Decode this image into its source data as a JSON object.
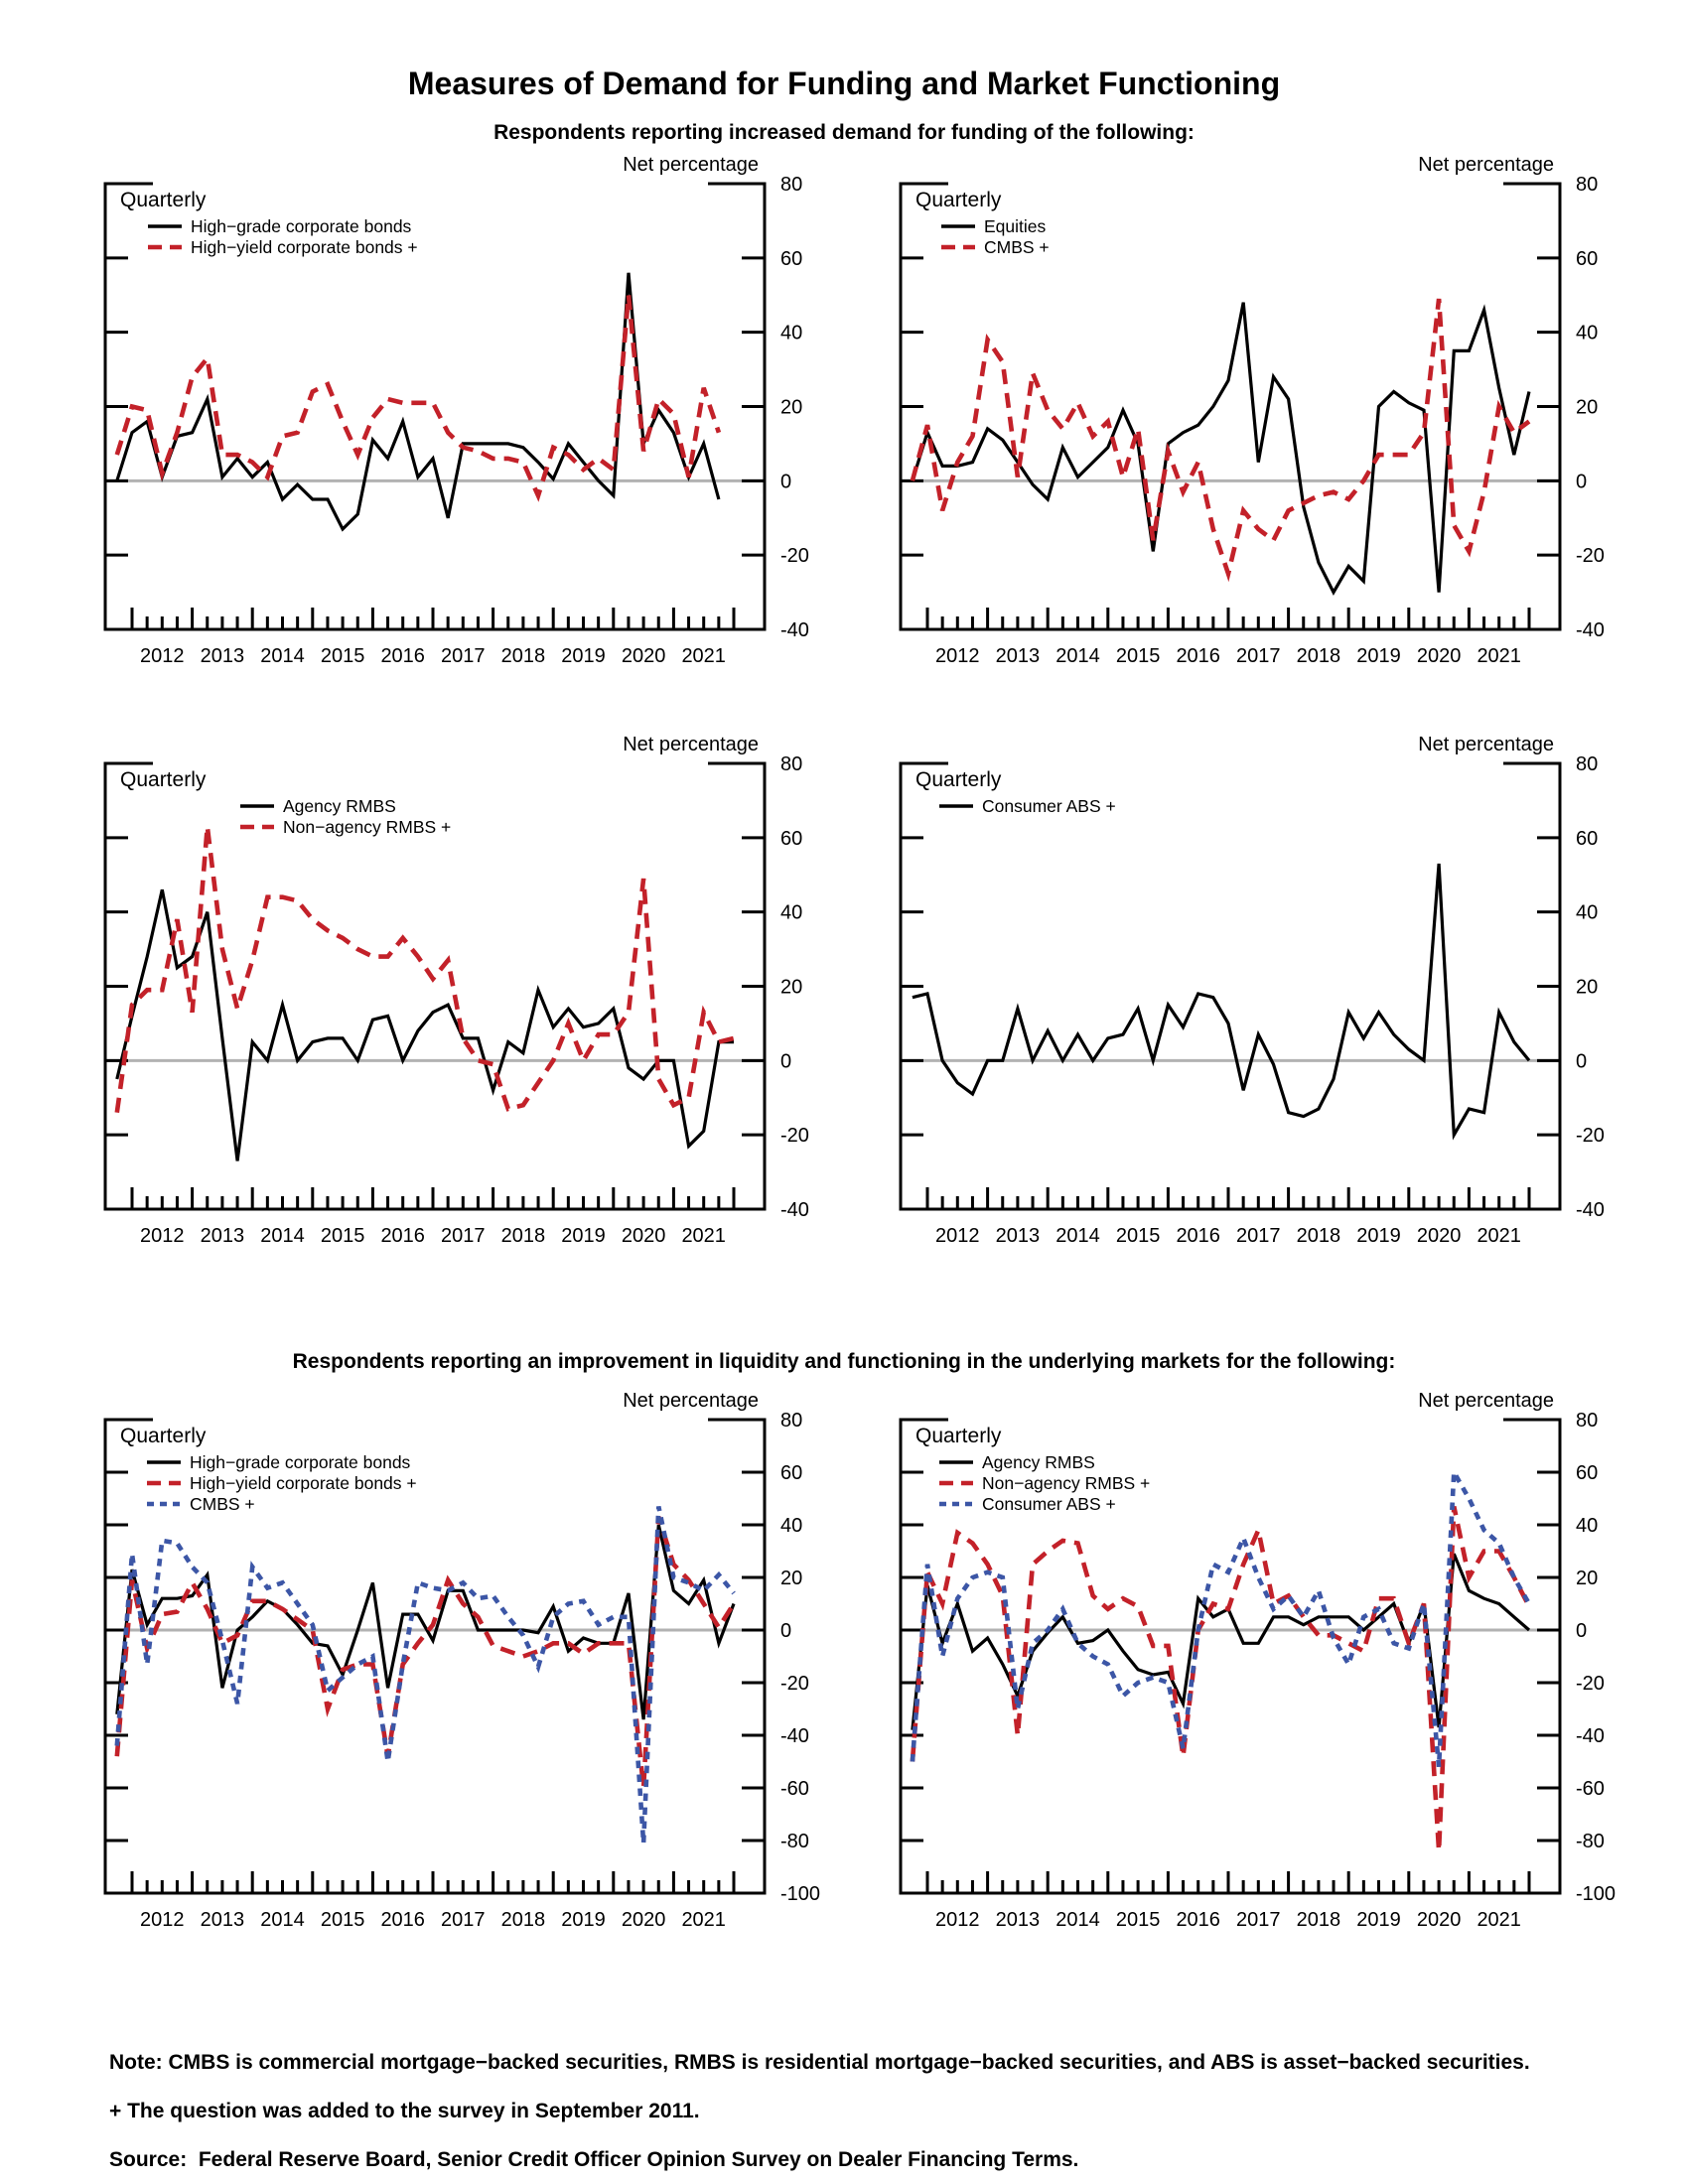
{
  "texts": {
    "title": "Measures of Demand for Funding and Market Functioning",
    "subtitle_funding": "Respondents reporting increased demand for funding of the following:",
    "subtitle_liquidity": "Respondents reporting an improvement in liquidity and functioning in the underlying markets for the following:"
  },
  "notes": {
    "line1": "Note: CMBS is commercial mortgage−backed securities, RMBS is residential mortgage−backed securities, and ABS is asset−backed securities.",
    "line2": "+ The question was added to the survey in September 2011.",
    "line3": "Source:  Federal Reserve Board, Senior Credit Officer Opinion Survey on Dealer Financing Terms."
  },
  "colors": {
    "black": "#000000",
    "red": "#c32129",
    "blue": "#3c56a6",
    "zero_line": "#b2b2b2"
  },
  "axis": {
    "ylabel": "Net percentage",
    "freq_label": "Quarterly",
    "x_years": [
      "2012",
      "2013",
      "2014",
      "2015",
      "2016",
      "2017",
      "2018",
      "2019",
      "2020",
      "2021"
    ]
  },
  "chart_data": [
    {
      "type": "line",
      "position": "top-left",
      "ylim": [
        -40,
        80
      ],
      "ytick_step": 20,
      "x_start": 2011.75,
      "x_step": 0.25,
      "series": [
        {
          "name": "High−grade corporate bonds",
          "color": "black",
          "dash": "solid",
          "values": [
            0,
            13,
            16,
            1,
            12,
            13,
            22,
            1,
            6,
            1,
            5,
            -5,
            -1,
            -5,
            -5,
            -13,
            -9,
            11,
            6,
            16,
            1,
            6,
            -10,
            10,
            10,
            10,
            10,
            9,
            5,
            0.5,
            10,
            5,
            0,
            -4,
            56,
            10,
            19,
            13,
            1,
            10,
            -5
          ]
        },
        {
          "name": "High−yield corporate bonds +",
          "color": "red",
          "dash": "long",
          "values": [
            7,
            20,
            19,
            2,
            13,
            28,
            33,
            7,
            7,
            5,
            1,
            12,
            13,
            24,
            26,
            16,
            7,
            17,
            22,
            21,
            21,
            21,
            13,
            9,
            8,
            6,
            6,
            5,
            -4,
            9,
            7,
            3,
            6,
            3,
            50,
            8,
            22,
            18,
            1,
            25,
            13
          ]
        }
      ]
    },
    {
      "type": "line",
      "position": "top-right",
      "ylim": [
        -40,
        80
      ],
      "ytick_step": 20,
      "x_start": 2011.75,
      "x_step": 0.25,
      "series": [
        {
          "name": "Equities",
          "color": "black",
          "dash": "solid",
          "values": [
            0,
            13,
            4,
            4,
            5,
            14,
            11,
            5,
            -1,
            -5,
            9,
            1,
            5,
            9,
            19,
            10,
            -19,
            10,
            13,
            15,
            20,
            27,
            48,
            5,
            28,
            22,
            -7,
            -22,
            -30,
            -23,
            -27,
            20,
            24,
            21,
            19,
            -30,
            35,
            35,
            46,
            25,
            7,
            24
          ]
        },
        {
          "name": "CMBS +",
          "color": "red",
          "dash": "long",
          "values": [
            0,
            15,
            -8,
            5,
            12,
            38,
            32,
            1,
            29,
            19,
            14,
            21,
            12,
            16,
            1,
            14,
            -16,
            8,
            -3,
            5,
            -13,
            -25,
            -8,
            -13,
            -16,
            -8,
            -6,
            -4,
            -3,
            -5,
            0,
            7,
            7,
            7,
            13,
            49,
            -12,
            -19,
            -3,
            20,
            13,
            16
          ]
        }
      ]
    },
    {
      "type": "line",
      "position": "mid-left",
      "ylim": [
        -40,
        80
      ],
      "ytick_step": 20,
      "x_start": 2011.75,
      "x_step": 0.25,
      "series": [
        {
          "name": "Agency RMBS",
          "color": "black",
          "dash": "solid",
          "values": [
            -5,
            12,
            28,
            46,
            25,
            28,
            40,
            6,
            -27,
            5,
            0,
            15,
            0,
            5,
            6,
            6,
            0,
            11,
            12,
            0,
            8,
            13,
            15,
            6,
            6,
            -8,
            5,
            2,
            19,
            9,
            14,
            9,
            10,
            14,
            -2,
            -5,
            0,
            0,
            -23,
            -19,
            5,
            5
          ]
        },
        {
          "name": "Non−agency RMBS +",
          "color": "red",
          "dash": "long",
          "values": [
            -14,
            15,
            19,
            19,
            38,
            13,
            63,
            30,
            14,
            27,
            44,
            44,
            43,
            38,
            35,
            33,
            30,
            28,
            28,
            33,
            28,
            22,
            27,
            6,
            0,
            -1,
            -13,
            -12,
            -6,
            0,
            10,
            0,
            7,
            7,
            13,
            49,
            -5,
            -12,
            -10,
            13,
            5,
            6
          ]
        }
      ]
    },
    {
      "type": "line",
      "position": "mid-right",
      "ylim": [
        -40,
        80
      ],
      "ytick_step": 20,
      "x_start": 2011.75,
      "x_step": 0.25,
      "series": [
        {
          "name": "Consumer ABS +",
          "color": "black",
          "dash": "solid",
          "values": [
            17,
            18,
            0,
            -6,
            -9,
            0,
            0,
            14,
            0,
            8,
            0,
            7,
            0,
            6,
            7,
            14,
            0,
            15,
            9,
            18,
            17,
            10,
            -8,
            7,
            -1,
            -14,
            -15,
            -13,
            -5,
            13,
            6,
            13,
            7,
            3,
            0,
            53,
            -20,
            -13,
            -14,
            13,
            5,
            0
          ]
        }
      ]
    },
    {
      "type": "line",
      "position": "bottom-left",
      "ylim": [
        -100,
        80
      ],
      "ytick_step": 20,
      "x_start": 2011.75,
      "x_step": 0.25,
      "series": [
        {
          "name": "High−grade corporate bonds",
          "color": "black",
          "dash": "solid",
          "values": [
            -32,
            23,
            2,
            12,
            12,
            13,
            21,
            -22,
            0,
            5,
            11,
            8,
            2,
            -5,
            -6,
            -17,
            0,
            18,
            -22,
            6,
            6,
            -4,
            15,
            15,
            0,
            0,
            0,
            0,
            -1,
            9,
            -8,
            -3,
            -5,
            -5,
            14,
            -34,
            40,
            15,
            10,
            19,
            -5,
            10
          ]
        },
        {
          "name": "High−yield corporate bonds +",
          "color": "red",
          "dash": "long",
          "values": [
            -48,
            19,
            -7,
            6,
            7,
            18,
            8,
            -5,
            -2,
            11,
            11,
            8,
            4,
            0,
            -30,
            -15,
            -13,
            -13,
            -48,
            -13,
            -5,
            2,
            19,
            10,
            5,
            -6,
            -8,
            -10,
            -8,
            -5,
            -5,
            -9,
            -5,
            -5,
            -5,
            -60,
            43,
            25,
            19,
            10,
            1,
            10
          ]
        },
        {
          "name": "CMBS +",
          "color": "blue",
          "dash": "short",
          "values": [
            -44,
            29,
            -13,
            34,
            33,
            24,
            18,
            -4,
            -28,
            24,
            16,
            18,
            10,
            2,
            -23,
            -18,
            -13,
            -10,
            -50,
            -13,
            18,
            16,
            15,
            18,
            12,
            13,
            5,
            -2,
            -14,
            5,
            10,
            11,
            2,
            5,
            5,
            -81,
            47,
            20,
            18,
            15,
            21,
            14
          ]
        }
      ]
    },
    {
      "type": "line",
      "position": "bottom-right",
      "ylim": [
        -100,
        80
      ],
      "ytick_step": 20,
      "x_start": 2011.75,
      "x_step": 0.25,
      "series": [
        {
          "name": "Agency RMBS",
          "color": "black",
          "dash": "solid",
          "values": [
            -38,
            17,
            -5,
            10,
            -8,
            -3,
            -13,
            -25,
            -8,
            -1,
            5,
            -5,
            -4,
            0,
            -8,
            -15,
            -17,
            -16,
            -28,
            12,
            5,
            8,
            -5,
            -5,
            5,
            5,
            2,
            5,
            5,
            5,
            0,
            5,
            10,
            -5,
            10,
            -37,
            29,
            15,
            12,
            10,
            5,
            0
          ]
        },
        {
          "name": "Non−agency RMBS +",
          "color": "red",
          "dash": "long",
          "values": [
            -50,
            22,
            10,
            37,
            33,
            25,
            13,
            -40,
            25,
            30,
            34,
            33,
            13,
            8,
            12,
            9,
            -6,
            -6,
            -48,
            0,
            10,
            8,
            25,
            38,
            10,
            13,
            5,
            -2,
            -2,
            -5,
            -8,
            12,
            12,
            -5,
            10,
            -84,
            47,
            20,
            30,
            30,
            20,
            9
          ]
        },
        {
          "name": "Consumer ABS +",
          "color": "blue",
          "dash": "short",
          "values": [
            -50,
            25,
            -10,
            12,
            20,
            22,
            20,
            -30,
            -5,
            0,
            8,
            -5,
            -10,
            -13,
            -25,
            -20,
            -18,
            -20,
            -45,
            0,
            25,
            22,
            35,
            20,
            8,
            13,
            5,
            15,
            -3,
            -13,
            5,
            8,
            -5,
            -7,
            10,
            -52,
            60,
            50,
            38,
            33,
            20,
            10
          ]
        }
      ]
    }
  ]
}
